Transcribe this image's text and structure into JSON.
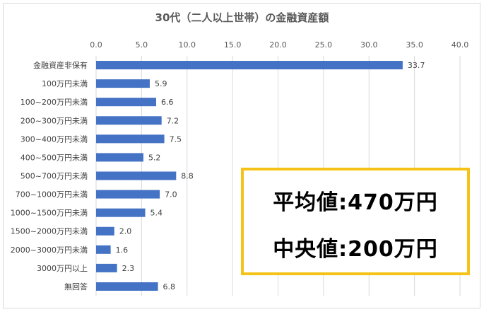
{
  "chart_data": {
    "type": "bar",
    "orientation": "horizontal",
    "title": "30代（二人以上世帯）の金融資産額",
    "categories": [
      "金融資産非保有",
      "100万円未満",
      "100~200万円未満",
      "200~300万円未満",
      "300~400万円未満",
      "400~500万円未満",
      "500~700万円未満",
      "700~1000万円未満",
      "1000~1500万円未満",
      "1500~2000万円未満",
      "2000~3000万円未満",
      "3000万円以上",
      "無回答"
    ],
    "values": [
      33.7,
      5.9,
      6.6,
      7.2,
      7.5,
      5.2,
      8.8,
      7.0,
      5.4,
      2.0,
      1.6,
      2.3,
      6.8
    ],
    "value_labels": [
      "33.7",
      "5.9",
      "6.6",
      "7.2",
      "7.5",
      "5.2",
      "8.8",
      "7.0",
      "5.4",
      "2.0",
      "1.6",
      "2.3",
      "6.8"
    ],
    "xticks": [
      "0.0",
      "5.0",
      "10.0",
      "15.0",
      "20.0",
      "25.0",
      "30.0",
      "35.0",
      "40.0"
    ],
    "xlim": [
      0,
      40
    ],
    "axis_position": "top",
    "grid": true,
    "bar_color": "#4472c4"
  },
  "callout": {
    "average": "平均値:470万円",
    "median": "中央値:200万円",
    "border_color": "#f5c318"
  }
}
